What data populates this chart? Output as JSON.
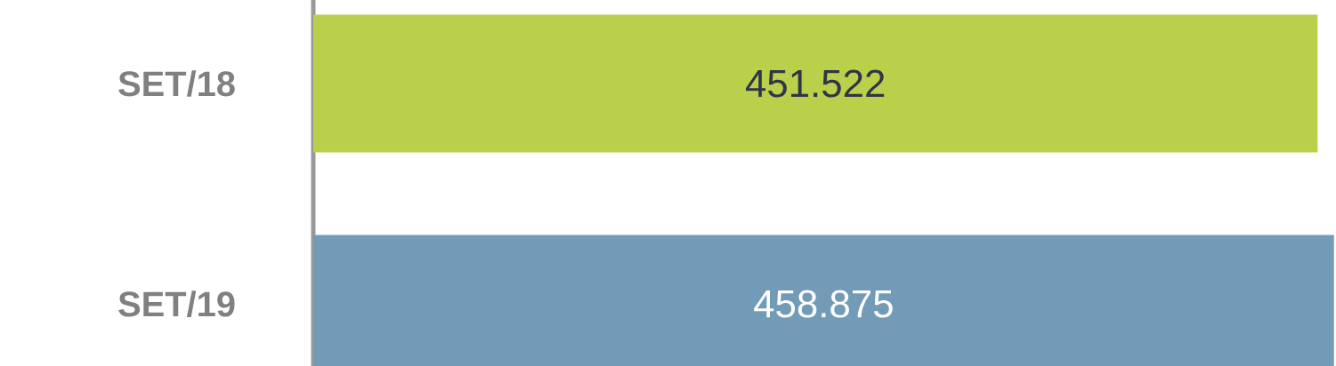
{
  "chart_data": {
    "type": "bar",
    "orientation": "horizontal",
    "categories": [
      "SET/18",
      "SET/19"
    ],
    "values": [
      451.522,
      458.875
    ],
    "colors": [
      "#bbd04a",
      "#729bb8"
    ],
    "data_labels": true
  }
}
